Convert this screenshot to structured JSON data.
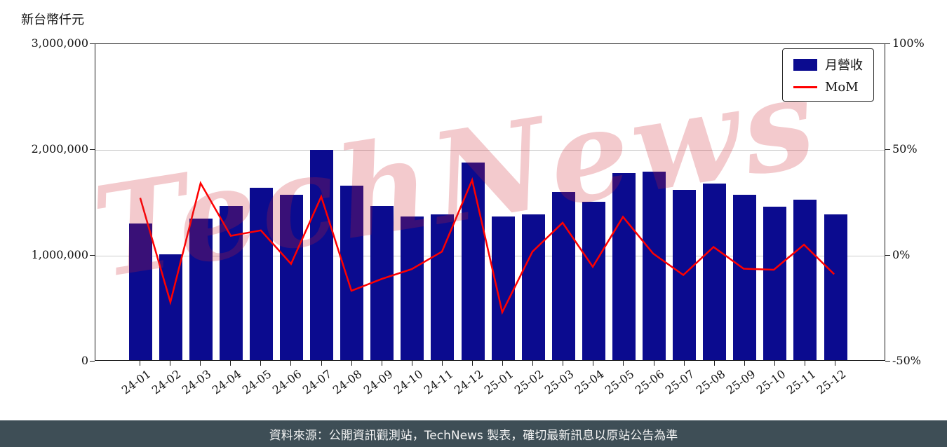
{
  "watermark": "TechNews",
  "footer": {
    "text": "資料來源：公開資訊觀測站，TechNews 製表，確切最新訊息以原站公告為準"
  },
  "colors": {
    "bar": "#0b0b8f",
    "line": "#ff0000",
    "grid": "#cccccc",
    "footer_bg": "#3e4e56",
    "watermark": "rgba(205,35,45,0.24)"
  },
  "chart_data": {
    "type": "bar",
    "title": "",
    "ylabel": "新台幣仟元",
    "grid": "horizontal",
    "legend_position": "top-right",
    "categories": [
      "24-01",
      "24-02",
      "24-03",
      "24-04",
      "24-05",
      "24-06",
      "24-07",
      "24-08",
      "24-09",
      "24-10",
      "24-11",
      "24-12",
      "25-01",
      "25-02",
      "25-03",
      "25-04",
      "25-05",
      "25-06",
      "25-07",
      "25-08",
      "25-09",
      "25-10",
      "25-11",
      "25-12"
    ],
    "series": [
      {
        "name": "月營收",
        "type": "bar",
        "axis": "left",
        "unit": "新台幣仟元",
        "values": [
          1290000,
          1000000,
          1340000,
          1460000,
          1630000,
          1560000,
          1990000,
          1650000,
          1460000,
          1360000,
          1380000,
          1870000,
          1360000,
          1380000,
          1590000,
          1500000,
          1770000,
          1780000,
          1610000,
          1670000,
          1560000,
          1450000,
          1520000,
          1380000
        ]
      },
      {
        "name": "MoM",
        "type": "line",
        "axis": "right",
        "unit": "%",
        "values": [
          27.0,
          -22.5,
          34.0,
          9.0,
          11.6,
          -4.3,
          27.6,
          -17.1,
          -11.5,
          -6.8,
          1.5,
          35.5,
          -27.3,
          1.5,
          15.2,
          -5.7,
          18.0,
          0.6,
          -9.6,
          3.7,
          -6.6,
          -7.1,
          4.8,
          -9.2
        ]
      }
    ],
    "left_axis": {
      "label": "新台幣仟元",
      "ticks": [
        "0",
        "1,000,000",
        "2,000,000",
        "3,000,000"
      ],
      "range": [
        0,
        3000000
      ]
    },
    "right_axis": {
      "ticks": [
        "-50%",
        "0%",
        "50%",
        "100%"
      ],
      "range": [
        -50,
        100
      ]
    }
  }
}
